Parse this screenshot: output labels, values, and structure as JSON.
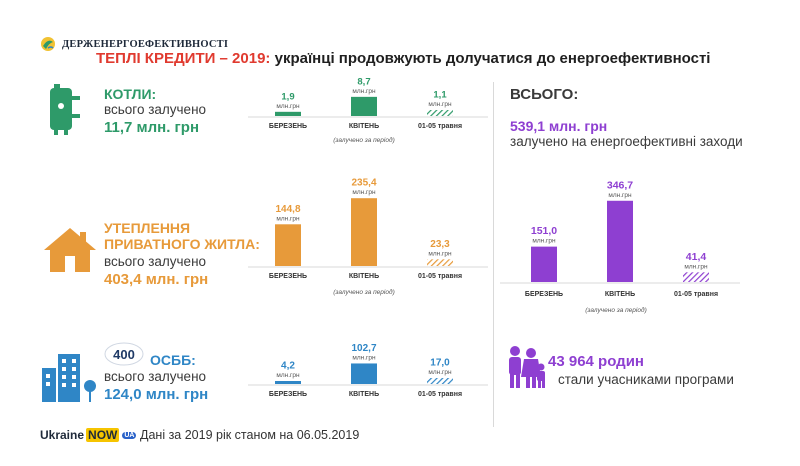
{
  "header": {
    "org_name": "ДЕРЖЕНЕРГОЕФЕКТИВНОСТІ",
    "title_accent": "ТЕПЛІ КРЕДИТИ – 2019:",
    "title_rest": " українці продовжують долучатися до енергоефективності"
  },
  "sections": [
    {
      "name": "КОТЛИ:",
      "sub": "всього залучено",
      "total": "11,7 млн. грн",
      "icon": "boiler-icon",
      "color": "#2e9a69"
    },
    {
      "name_line1": "УТЕПЛЕННЯ",
      "name_line2": "ПРИВАТНОГО ЖИТЛА:",
      "sub": "всього залучено",
      "total": "403,4 млн. грн",
      "icon": "house-icon",
      "color": "#e79a3a"
    },
    {
      "badge": "400",
      "name": "ОСББ:",
      "sub": "всього залучено",
      "total": "124,0 млн. грн",
      "icon": "building-icon",
      "color": "#2f86c6"
    }
  ],
  "summary": {
    "heading": "ВСЬОГО:",
    "total": "539,1 млн. грн",
    "total_sub": "залучено на енергоефективні заходи",
    "families": "43 964 родин",
    "families_sub": "стали учасниками програми"
  },
  "footer": {
    "note": "Дані за 2019 рік станом на 06.05.2019",
    "brand_ukraine": "Ukraine",
    "brand_now": "NOW",
    "brand_badge": "UA"
  },
  "unit_label": "млн.грн",
  "period_note": "(залучено за період)",
  "colors": {
    "green": "#2e9a69",
    "orange": "#e79a3a",
    "blue": "#2f86c6",
    "purple": "#8e3fd1",
    "title_accent": "#e03a2f"
  },
  "chart_data": [
    {
      "type": "bar",
      "categories": [
        "БЕРЕЗЕНЬ",
        "КВІТЕНЬ",
        "01-05 травня"
      ],
      "values": [
        1.9,
        8.7,
        1.1
      ],
      "value_labels": [
        "1,9",
        "8,7",
        "1,1"
      ],
      "unit": "млн.грн",
      "note": "(залучено за період)",
      "color": "#2e9a69",
      "ylim": [
        0,
        10
      ]
    },
    {
      "type": "bar",
      "categories": [
        "БЕРЕЗЕНЬ",
        "КВІТЕНЬ",
        "01-05 травня"
      ],
      "values": [
        144.8,
        235.4,
        23.3
      ],
      "value_labels": [
        "144,8",
        "235,4",
        "23,3"
      ],
      "unit": "млн.грн",
      "note": "(залучено за період)",
      "color": "#e79a3a",
      "ylim": [
        0,
        250
      ]
    },
    {
      "type": "bar",
      "categories": [
        "БЕРЕЗЕНЬ",
        "КВІТЕНЬ",
        "01-05 травня"
      ],
      "values": [
        4.2,
        102.7,
        17.0
      ],
      "value_labels": [
        "4,2",
        "102,7",
        "17,0"
      ],
      "unit": "млн.грн",
      "note": "(залучено за період)",
      "color": "#2f86c6",
      "ylim": [
        0,
        110
      ]
    },
    {
      "type": "bar",
      "categories": [
        "БЕРЕЗЕНЬ",
        "КВІТЕНЬ",
        "01-05 травня"
      ],
      "values": [
        151.0,
        346.7,
        41.4
      ],
      "value_labels": [
        "151,0",
        "346,7",
        "41,4"
      ],
      "unit": "млн.грн",
      "note": "(залучено за період)",
      "color": "#8e3fd1",
      "ylim": [
        0,
        350
      ]
    }
  ]
}
